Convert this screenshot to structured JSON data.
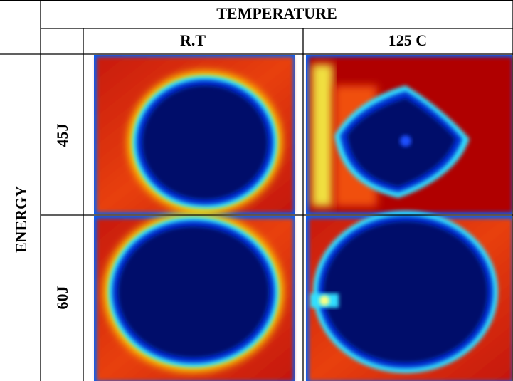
{
  "header": {
    "title": "TEMPERATURE",
    "columns": [
      "R.T",
      "125 C"
    ]
  },
  "row_header": "ENERGY",
  "rows": [
    "45J",
    "60J"
  ]
}
